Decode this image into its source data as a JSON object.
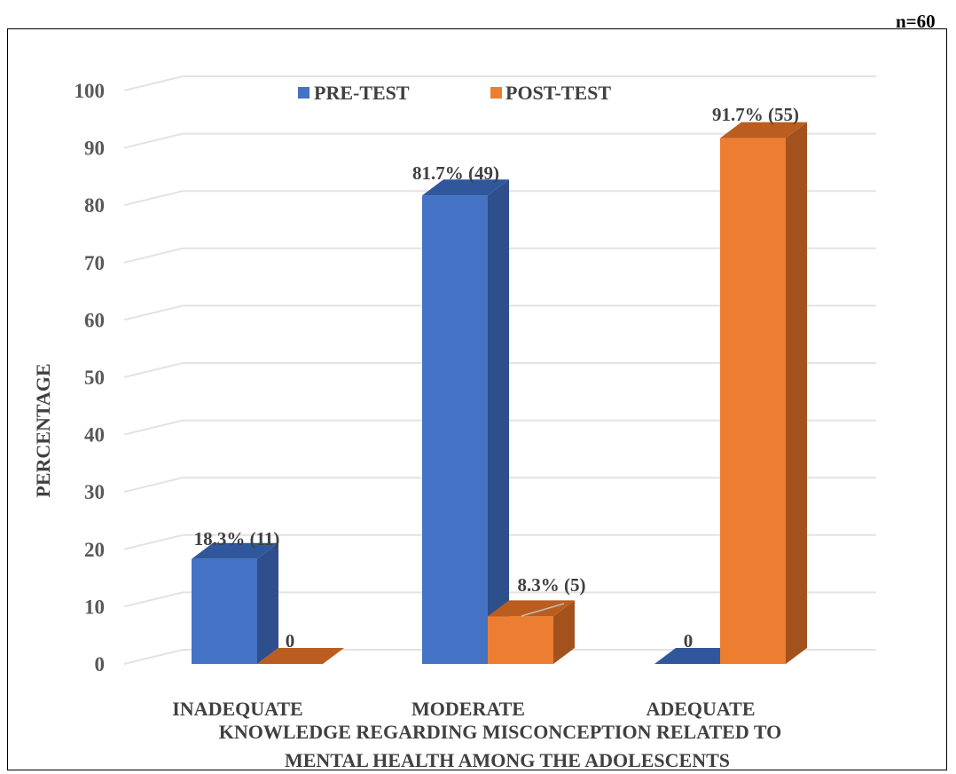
{
  "annotation": {
    "sample_size": "n=60"
  },
  "chart_data": {
    "type": "bar",
    "style": "3d-clustered-column",
    "categories": [
      "INADEQUATE",
      "MODERATE",
      "ADEQUATE"
    ],
    "series": [
      {
        "name": "PRE-TEST",
        "values": [
          18.3,
          81.7,
          0
        ],
        "labels": [
          "18.3% (11)",
          "81.7% (49)",
          "0"
        ],
        "color": "#4472C4",
        "side_color": "#2E4F8B",
        "top_color": "#30569C"
      },
      {
        "name": "POST-TEST",
        "values": [
          0,
          8.3,
          91.7
        ],
        "labels": [
          "0",
          "8.3% (5)",
          "91.7% (55)"
        ],
        "color": "#ED7D31",
        "side_color": "#A3521D",
        "top_color": "#BB5D1F"
      }
    ],
    "ylabel": "PERCENTAGE",
    "xlabel": [
      "KNOWLEDGE REGARDING MISCONCEPTION RELATED TO",
      "MENTAL HEALTH AMONG THE ADOLESCENTS"
    ],
    "ylim": [
      0,
      100
    ],
    "yticks": [
      "0",
      "10",
      "20",
      "30",
      "40",
      "50",
      "60",
      "70",
      "80",
      "90",
      "100"
    ],
    "grid": true,
    "legend_position": "top"
  }
}
